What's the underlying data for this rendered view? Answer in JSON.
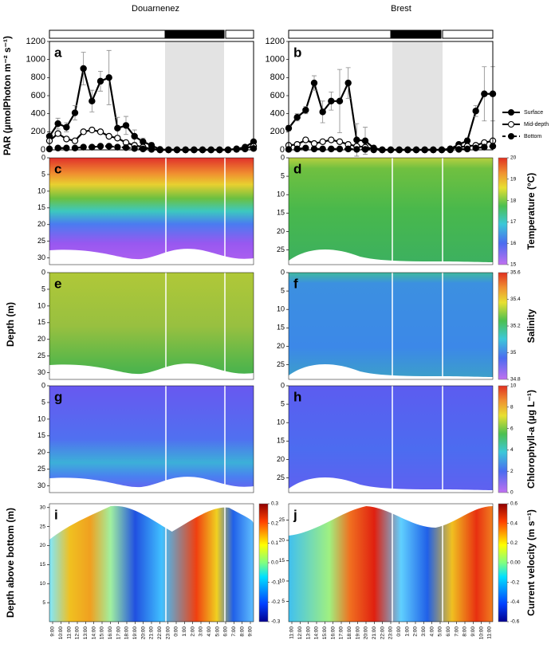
{
  "titles": {
    "left": "Douarnenez",
    "right": "Brest"
  },
  "chart_data": [
    {
      "type": "line",
      "panel": "a",
      "ylabel": "PAR (µmolPhoton m⁻² s⁻¹)",
      "ylim": [
        0,
        1200
      ],
      "yticks": [
        0,
        200,
        400,
        600,
        800,
        1000,
        1200
      ],
      "xlim": [
        0,
        24
      ],
      "x": [
        0,
        1,
        2,
        3,
        4,
        5,
        6,
        7,
        8,
        9,
        10,
        11,
        12,
        13,
        14,
        15,
        16,
        17,
        18,
        19,
        20,
        21,
        22,
        23,
        24
      ],
      "series": [
        {
          "style": "filled",
          "dash": false,
          "color": "#000000",
          "values": [
            150,
            290,
            250,
            410,
            900,
            540,
            760,
            800,
            240,
            270,
            150,
            90,
            50,
            5,
            0,
            0,
            0,
            0,
            0,
            0,
            0,
            0,
            10,
            30,
            90
          ],
          "errors": [
            50,
            60,
            50,
            80,
            180,
            120,
            110,
            300,
            120,
            100,
            70,
            40,
            30,
            0,
            0,
            0,
            0,
            0,
            0,
            0,
            0,
            0,
            5,
            10,
            20
          ]
        },
        {
          "style": "open",
          "dash": false,
          "color": "#000000",
          "values": [
            100,
            180,
            120,
            100,
            200,
            220,
            200,
            150,
            130,
            80,
            50,
            30,
            10,
            0,
            0,
            0,
            0,
            0,
            0,
            0,
            0,
            0,
            10,
            20,
            40
          ]
        },
        {
          "style": "filled",
          "dash": true,
          "color": "#000000",
          "values": [
            10,
            20,
            20,
            20,
            30,
            30,
            40,
            40,
            30,
            25,
            15,
            10,
            5,
            0,
            0,
            0,
            0,
            0,
            0,
            0,
            0,
            0,
            5,
            10,
            15
          ]
        }
      ]
    },
    {
      "type": "line",
      "panel": "b",
      "ylim": [
        0,
        1200
      ],
      "yticks": [
        0,
        200,
        400,
        600,
        800,
        1000,
        1200
      ],
      "xlim": [
        0,
        24
      ],
      "legend": "right",
      "x": [
        0,
        1,
        2,
        3,
        4,
        5,
        6,
        7,
        8,
        9,
        10,
        11,
        12,
        13,
        14,
        15,
        16,
        17,
        18,
        19,
        20,
        21,
        22,
        23,
        24
      ],
      "series": [
        {
          "name": "Surface",
          "style": "filled",
          "dash": false,
          "color": "#000000",
          "values": [
            240,
            360,
            440,
            740,
            420,
            540,
            540,
            740,
            110,
            100,
            20,
            0,
            0,
            0,
            0,
            0,
            0,
            0,
            0,
            10,
            60,
            100,
            430,
            620,
            620
          ],
          "errors": [
            30,
            40,
            40,
            80,
            120,
            100,
            350,
            170,
            180,
            150,
            20,
            0,
            0,
            0,
            0,
            0,
            0,
            0,
            0,
            10,
            20,
            30,
            60,
            300,
            300
          ]
        },
        {
          "name": "Mid-depth",
          "style": "open",
          "dash": false,
          "color": "#000000",
          "values": [
            50,
            60,
            110,
            70,
            90,
            110,
            90,
            60,
            40,
            30,
            10,
            0,
            0,
            0,
            0,
            0,
            0,
            0,
            0,
            10,
            30,
            40,
            50,
            80,
            100
          ]
        },
        {
          "name": "Bottom",
          "style": "filled",
          "dash": true,
          "color": "#000000",
          "values": [
            5,
            10,
            20,
            10,
            10,
            10,
            10,
            10,
            5,
            5,
            0,
            0,
            0,
            0,
            0,
            0,
            0,
            0,
            0,
            0,
            5,
            10,
            20,
            30,
            40
          ]
        }
      ]
    },
    {
      "type": "heatmap",
      "panel": "c",
      "yinverted": true,
      "ylim": [
        0,
        32
      ],
      "yticks": [
        0,
        5,
        10,
        15,
        20,
        25,
        30
      ]
    },
    {
      "type": "heatmap",
      "panel": "d",
      "yinverted": true,
      "ylim": [
        0,
        29
      ],
      "yticks": [
        0,
        5,
        10,
        15,
        20,
        25
      ],
      "colorbar": {
        "label": "Temperature (°C)",
        "colormap": "rainbow",
        "lim": [
          15,
          20
        ],
        "ticks": [
          15,
          16,
          17,
          18,
          19,
          20
        ]
      }
    },
    {
      "type": "heatmap",
      "panel": "e",
      "ylabel": "Depth (m)",
      "yinverted": true,
      "ylim": [
        0,
        32
      ],
      "yticks": [
        0,
        5,
        10,
        15,
        20,
        25,
        30
      ]
    },
    {
      "type": "heatmap",
      "panel": "f",
      "yinverted": true,
      "ylim": [
        0,
        29
      ],
      "yticks": [
        0,
        5,
        10,
        15,
        20,
        25
      ],
      "colorbar": {
        "label": "Salinity",
        "colormap": "rainbow",
        "lim": [
          34.8,
          35.6
        ],
        "ticks": [
          34.8,
          35,
          35.2,
          35.4,
          35.6
        ]
      }
    },
    {
      "type": "heatmap",
      "panel": "g",
      "yinverted": true,
      "ylim": [
        0,
        32
      ],
      "yticks": [
        0,
        5,
        10,
        15,
        20,
        25,
        30
      ]
    },
    {
      "type": "heatmap",
      "panel": "h",
      "yinverted": true,
      "ylim": [
        0,
        29
      ],
      "yticks": [
        0,
        5,
        10,
        15,
        20,
        25
      ],
      "colorbar": {
        "label": "Chlorophyll-a (µg L⁻¹)",
        "colormap": "rainbow",
        "lim": [
          0,
          10
        ],
        "ticks": [
          0,
          2,
          4,
          6,
          8,
          10
        ]
      }
    },
    {
      "type": "heatmap",
      "panel": "i",
      "ylabel": "Depth above bottom (m)",
      "yinverted": false,
      "ylim": [
        0,
        31
      ],
      "yticks": [
        5,
        10,
        15,
        20,
        25,
        30
      ],
      "categories": [
        "9:00",
        "10:00",
        "11:00",
        "12:00",
        "13:00",
        "14:00",
        "15:00",
        "16:00",
        "17:00",
        "18:00",
        "19:00",
        "20:00",
        "21:00",
        "22:00",
        "23:00",
        "0:00",
        "1:00",
        "2:00",
        "3:00",
        "4:00",
        "5:00",
        "6:00",
        "7:00",
        "8:00",
        "9:00"
      ],
      "colorbar": {
        "colormap": "jet",
        "lim": [
          -0.3,
          0.3
        ],
        "ticks": [
          -0.3,
          -0.2,
          -0.1,
          {
            "value": 0,
            "label": "0.0"
          },
          0.1,
          0.2,
          0.3
        ]
      }
    },
    {
      "type": "heatmap",
      "panel": "j",
      "yinverted": false,
      "ylim": [
        0,
        29
      ],
      "yticks": [
        5,
        10,
        15,
        20,
        25
      ],
      "categories": [
        "11:00",
        "12:00",
        "13:00",
        "14:00",
        "15:00",
        "16:00",
        "17:00",
        "18:00",
        "19:00",
        "20:00",
        "21:00",
        "22:00",
        "23:00",
        "0:00",
        "1:00",
        "2:00",
        "3:00",
        "4:00",
        "5:00",
        "6:00",
        "7:00",
        "8:00",
        "9:00",
        "10:00",
        "11:00"
      ],
      "colorbar": {
        "label": "Current velocity (m s⁻¹)",
        "colormap": "jet",
        "lim": [
          -0.6,
          0.6
        ],
        "ticks": [
          -0.6,
          -0.4,
          -0.2,
          {
            "value": 0,
            "label": "0.00"
          },
          0.2,
          0.4,
          0.6
        ]
      }
    }
  ]
}
